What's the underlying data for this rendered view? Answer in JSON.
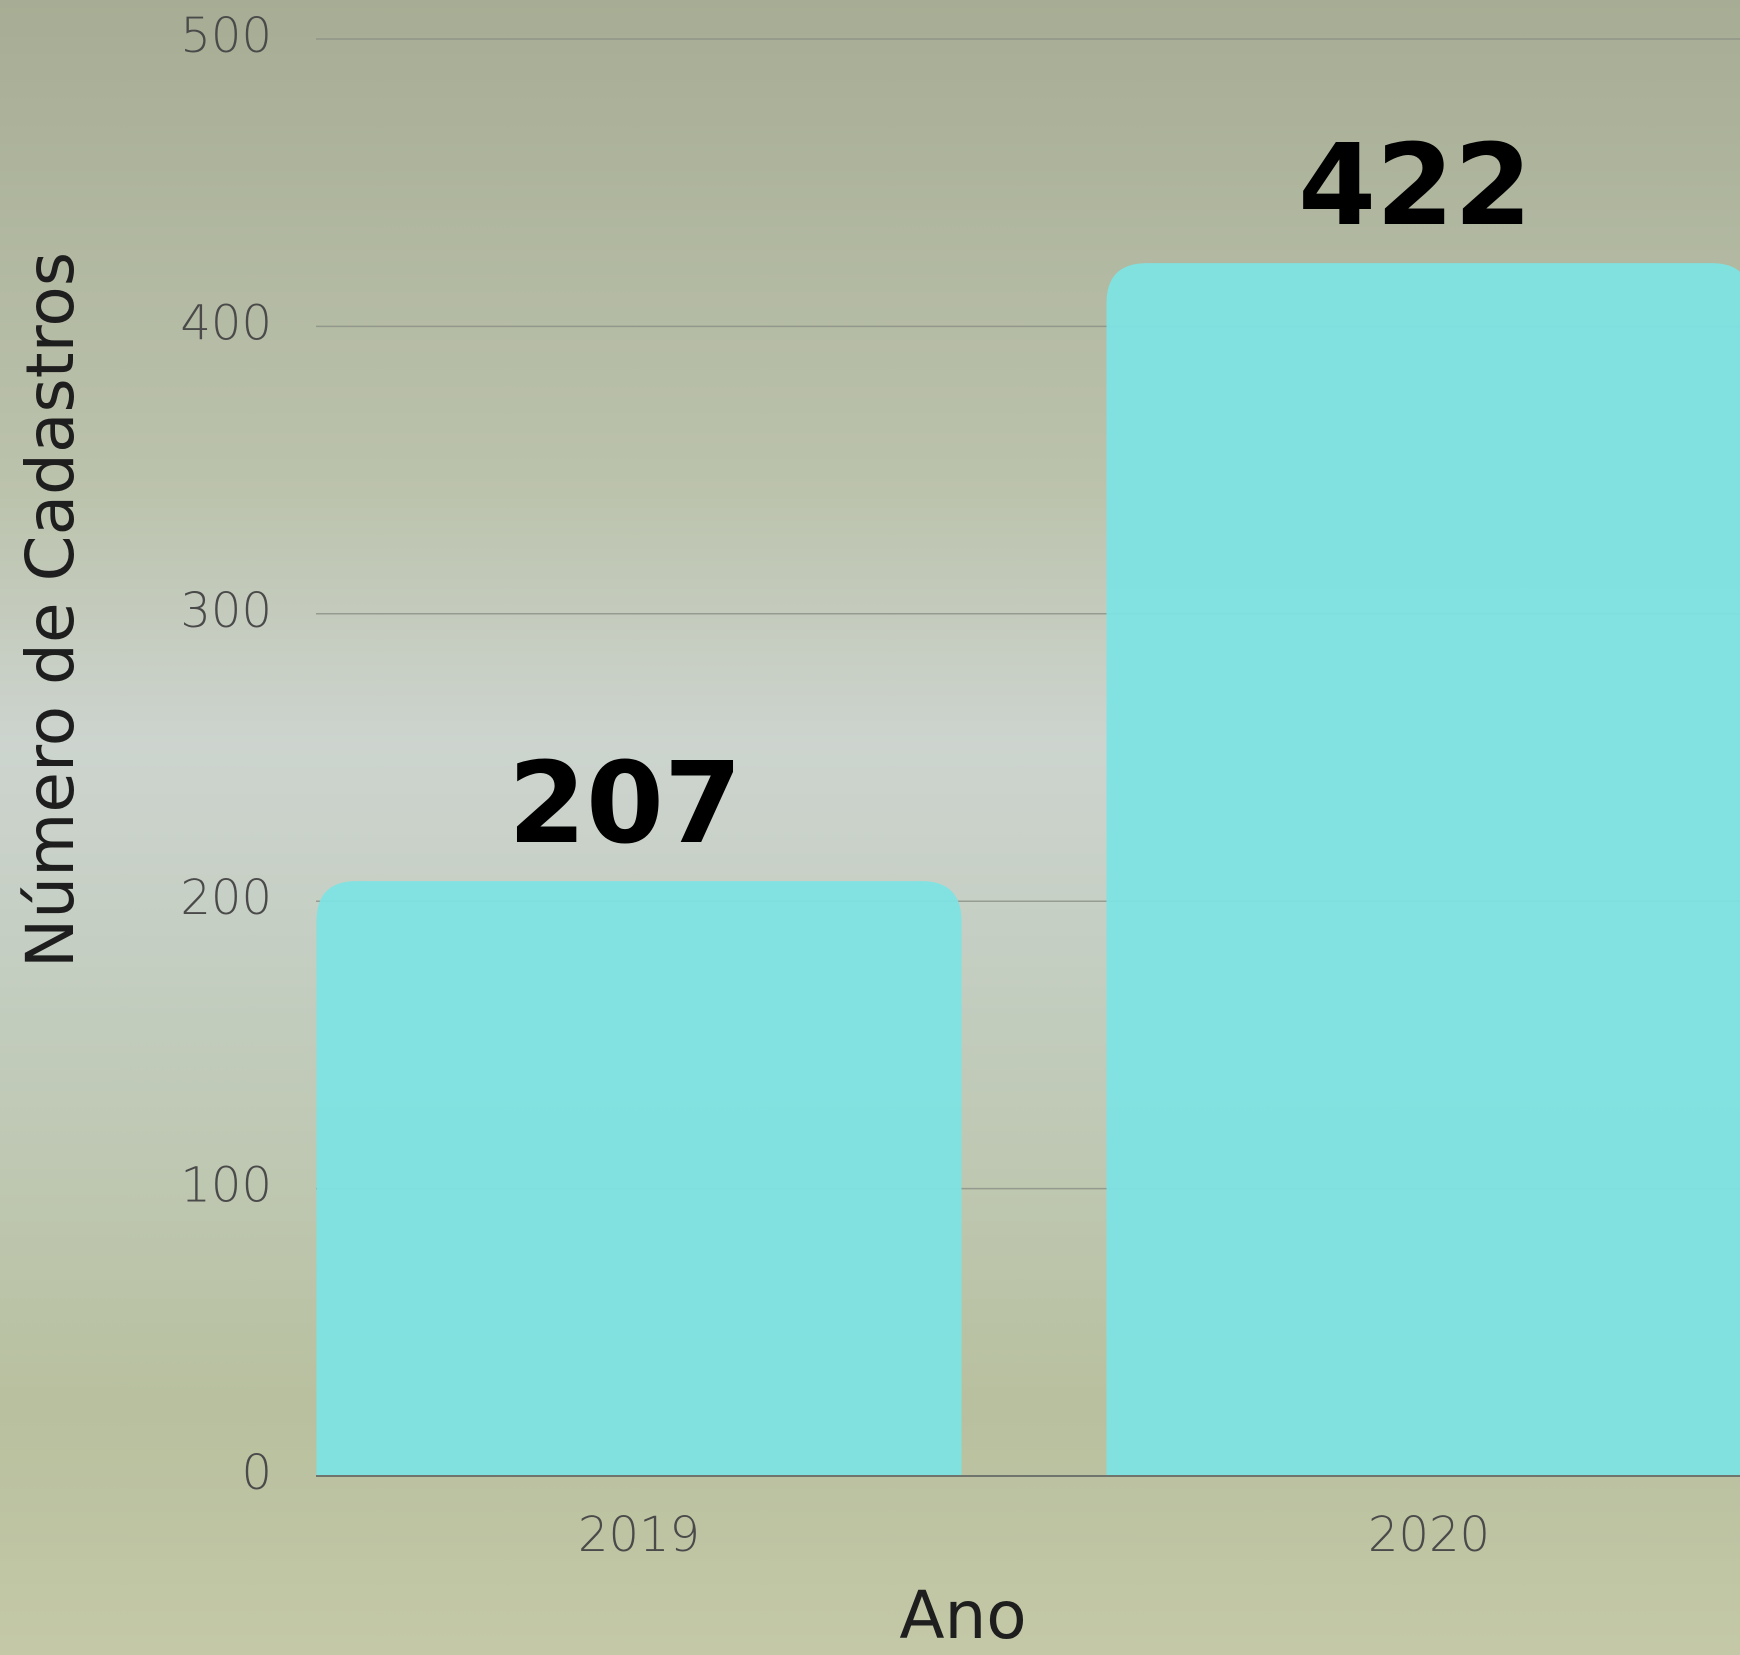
{
  "chart_data": {
    "type": "bar",
    "categories": [
      "2019",
      "2020"
    ],
    "values": [
      207,
      422
    ],
    "color": "#7de3e3",
    "xlabel": "Ano",
    "ylabel": "Número de Cadastros",
    "ylim": [
      0,
      500
    ],
    "yticks": [
      0,
      100,
      200,
      300,
      400,
      500
    ],
    "grid": true
  }
}
